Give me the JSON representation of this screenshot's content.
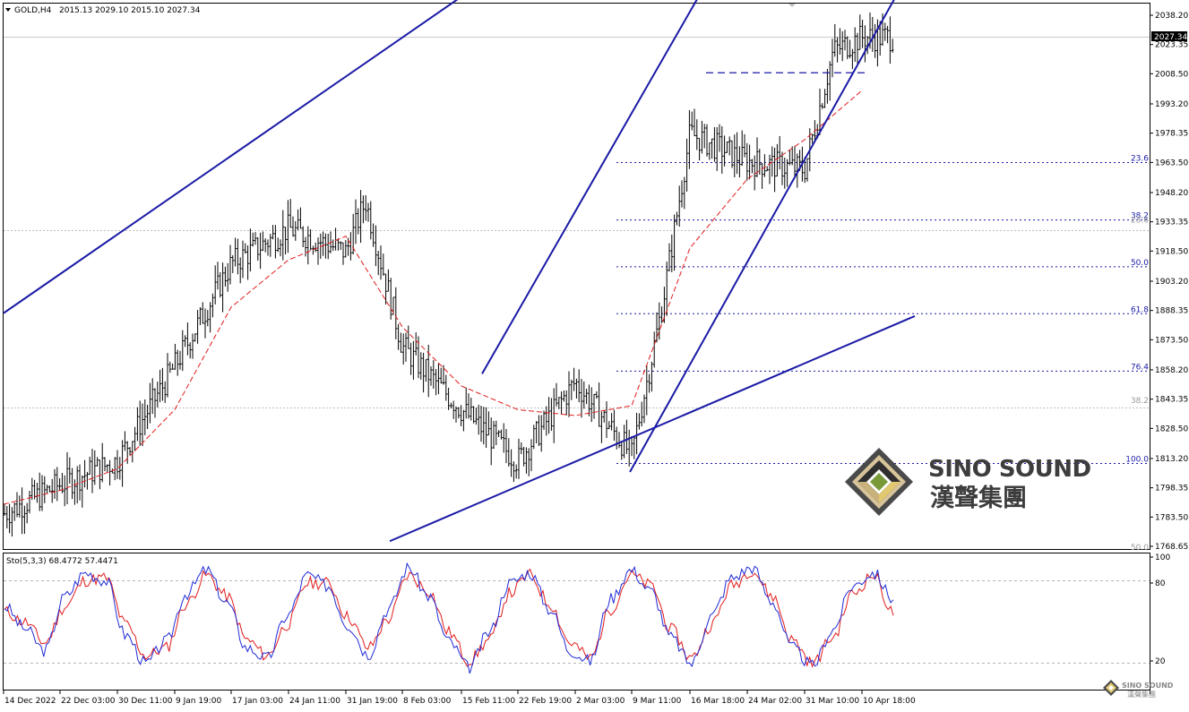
{
  "header": {
    "title": "GOLD,H4",
    "ohlc": "2015.13 2029.10 2015.10 2027.34",
    "collapse_arrow": "triangle-down-icon"
  },
  "price_axis": {
    "ticks": [
      "2038.20",
      "2023.35",
      "2008.50",
      "1993.20",
      "1978.35",
      "1963.50",
      "1948.20",
      "1933.35",
      "1918.50",
      "1903.20",
      "1888.35",
      "1873.50",
      "1858.20",
      "1843.35",
      "1828.50",
      "1813.20",
      "1798.35",
      "1783.50",
      "1768.65"
    ],
    "current_price": "2027.34",
    "current_price_value": 2027.34
  },
  "fib_levels": [
    {
      "label": "23.6",
      "price": 1963.4
    },
    {
      "label": "38.2",
      "price": 1934.3
    },
    {
      "label": "50.0",
      "price": 1910.5
    },
    {
      "label": "61.8",
      "price": 1886.7
    },
    {
      "label": "76.4",
      "price": 1857.6
    },
    {
      "label": "100.0",
      "price": 1810.7
    }
  ],
  "fib_faint_levels": [
    {
      "label": "23.6",
      "price": 1932.0
    },
    {
      "label": "38.2",
      "price": 1840.5
    },
    {
      "label": "50.0",
      "price": 1766.0
    }
  ],
  "time_axis": {
    "labels": [
      "14 Dec 2022",
      "22 Dec 03:00",
      "30 Dec 11:00",
      "9 Jan 19:00",
      "17 Jan 03:00",
      "24 Jan 11:00",
      "31 Jan 19:00",
      "8 Feb 03:00",
      "15 Feb 11:00",
      "22 Feb 19:00",
      "2 Mar 03:00",
      "9 Mar 11:00",
      "16 Mar 18:00",
      "24 Mar 02:00",
      "31 Mar 10:00",
      "10 Apr 18:00"
    ]
  },
  "indicator": {
    "label": "Sto(5,3,3) 68.4772 57.4471",
    "ticks": [
      "100",
      "80",
      "20"
    ]
  },
  "watermark": {
    "brand": "SINO SOUND",
    "chinese": "漢聲集團",
    "small_brand": "SINO SOUND",
    "small_chinese": "漢聲集團",
    "logo": "diamond-logo-icon"
  },
  "chart_data": [
    {
      "type": "candlestick",
      "title": "GOLD,H4",
      "ylim": [
        1768.65,
        2038.2
      ],
      "x_range": [
        "14 Dec 2022",
        "10 Apr 18:00"
      ],
      "current_price": 2027.34,
      "series": [
        {
          "name": "price",
          "x": [
            "14 Dec 2022",
            "22 Dec 03:00",
            "30 Dec 11:00",
            "9 Jan 19:00",
            "17 Jan 03:00",
            "24 Jan 11:00",
            "31 Jan 19:00",
            "2 Feb",
            "8 Feb 03:00",
            "15 Feb 11:00",
            "22 Feb 19:00",
            "2 Mar 03:00",
            "9 Mar 11:00",
            "13 Mar",
            "16 Mar 18:00",
            "24 Mar 02:00",
            "31 Mar 10:00",
            "4 Apr",
            "10 Apr 18:00"
          ],
          "values": [
            1785,
            1800,
            1812,
            1860,
            1912,
            1930,
            1918,
            1944,
            1870,
            1838,
            1812,
            1852,
            1815,
            1888,
            1978,
            1964,
            1960,
            2020,
            2027
          ]
        },
        {
          "name": "moving-average",
          "x": [
            "14 Dec 2022",
            "22 Dec 03:00",
            "30 Dec 11:00",
            "9 Jan 19:00",
            "17 Jan 03:00",
            "24 Jan 11:00",
            "31 Jan 19:00",
            "8 Feb 03:00",
            "15 Feb 11:00",
            "22 Feb 19:00",
            "2 Mar 03:00",
            "9 Mar 11:00",
            "16 Mar 18:00",
            "24 Mar 02:00",
            "31 Mar 10:00",
            "10 Apr 18:00"
          ],
          "values": [
            1790,
            1797,
            1808,
            1838,
            1890,
            1914,
            1926,
            1880,
            1850,
            1838,
            1835,
            1840,
            1920,
            1955,
            1975,
            2000
          ]
        }
      ],
      "trendlines": [
        {
          "name": "upper-channel-line",
          "from": [
            "14 Dec 2022",
            1887
          ],
          "to": [
            "2 Feb",
            2014
          ]
        },
        {
          "name": "lower-support-line",
          "from": [
            "2 Feb",
            1766
          ],
          "to": [
            "10 Apr 18:00",
            1874
          ]
        },
        {
          "name": "steep-channel-upper",
          "from": [
            "15 Feb 11:00",
            1838
          ],
          "to": [
            "16 Mar 18:00",
            2040
          ]
        },
        {
          "name": "steep-channel-lower",
          "from": [
            "9 Mar 11:00",
            1808
          ],
          "to": [
            "10 Apr 18:00",
            2017
          ]
        },
        {
          "name": "resistance-dash",
          "from": [
            "16 Mar 18:00",
            2009
          ],
          "to": [
            "4 Apr",
            2009
          ]
        }
      ]
    },
    {
      "type": "line",
      "title": "Sto(5,3,3) 68.4772 57.4471",
      "ylim": [
        0,
        100
      ],
      "levels": [
        80,
        20
      ],
      "series": [
        {
          "name": "main",
          "values": [
            62,
            45,
            28,
            70,
            88,
            82,
            40,
            18,
            35,
            72,
            90,
            65,
            30,
            22,
            55,
            86,
            78,
            48,
            25,
            60,
            92,
            70,
            35,
            15,
            42,
            80,
            88,
            60,
            28,
            20,
            68,
            90,
            74,
            38,
            18,
            55,
            84,
            92,
            66,
            30,
            16,
            44,
            78,
            88,
            68
          ]
        },
        {
          "name": "signal",
          "values": [
            58,
            50,
            34,
            62,
            82,
            84,
            48,
            24,
            30,
            64,
            86,
            70,
            36,
            24,
            48,
            80,
            80,
            54,
            30,
            52,
            86,
            74,
            42,
            20,
            36,
            72,
            86,
            64,
            34,
            22,
            60,
            86,
            78,
            44,
            22,
            48,
            78,
            90,
            70,
            36,
            18,
            38,
            72,
            86,
            57
          ]
        }
      ]
    }
  ]
}
